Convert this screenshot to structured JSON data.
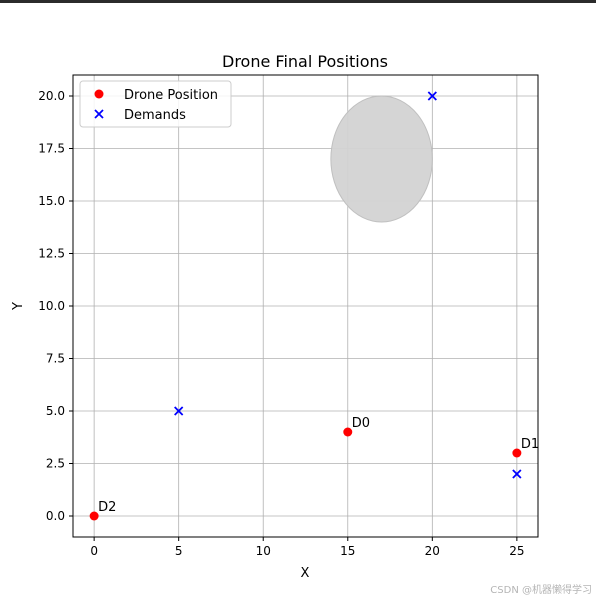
{
  "chart_data": {
    "type": "scatter",
    "title": "Drone Final Positions",
    "xlabel": "X",
    "ylabel": "Y",
    "xlim": [
      -1.25,
      26.25
    ],
    "ylim": [
      -1.0,
      21.0
    ],
    "xticks": [
      0,
      5,
      10,
      15,
      20,
      25
    ],
    "xtick_labels": [
      "0",
      "5",
      "10",
      "15",
      "20",
      "25"
    ],
    "yticks": [
      0.0,
      2.5,
      5.0,
      7.5,
      10.0,
      12.5,
      15.0,
      17.5,
      20.0
    ],
    "ytick_labels": [
      "0.0",
      "2.5",
      "5.0",
      "7.5",
      "10.0",
      "12.5",
      "15.0",
      "17.5",
      "20.0"
    ],
    "grid": true,
    "legend_position": "top-left",
    "series": [
      {
        "name": "Drone Position",
        "marker": "circle",
        "color": "#ff0000",
        "points": [
          {
            "x": 15,
            "y": 4,
            "label": "D0"
          },
          {
            "x": 25,
            "y": 3,
            "label": "D1"
          },
          {
            "x": 0,
            "y": 0,
            "label": "D2"
          }
        ]
      },
      {
        "name": "Demands",
        "marker": "x",
        "color": "#0000ff",
        "points": [
          {
            "x": 5,
            "y": 5
          },
          {
            "x": 20,
            "y": 20
          },
          {
            "x": 25,
            "y": 2
          }
        ]
      }
    ],
    "obstacle": {
      "cx": 17,
      "cy": 17,
      "rx": 3,
      "ry": 3,
      "color": "#d3d3d3"
    }
  },
  "watermark": "CSDN @机器懒得学习"
}
